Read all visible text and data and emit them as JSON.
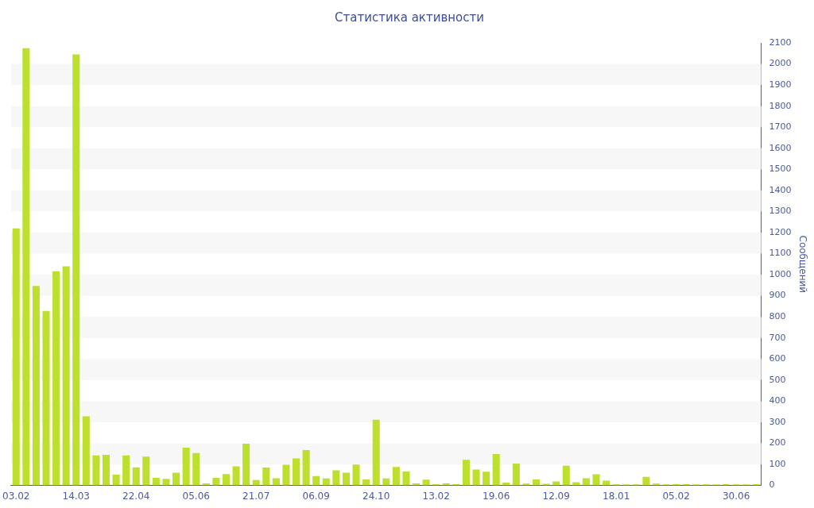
{
  "chart_data": {
    "type": "bar",
    "title": "Статистика активности",
    "y2label": "Сообщений",
    "categories": [
      "03.02",
      null,
      null,
      null,
      null,
      null,
      "14.03",
      null,
      null,
      null,
      null,
      null,
      "22.04",
      null,
      null,
      null,
      null,
      null,
      "05.06",
      null,
      null,
      null,
      null,
      null,
      "21.07",
      null,
      null,
      null,
      null,
      null,
      "06.09",
      null,
      null,
      null,
      null,
      null,
      "24.10",
      null,
      null,
      null,
      null,
      null,
      "13.02",
      null,
      null,
      null,
      null,
      null,
      "19.06",
      null,
      null,
      null,
      null,
      null,
      "12.09",
      null,
      null,
      null,
      null,
      null,
      "18.01",
      null,
      null,
      null,
      null,
      null,
      "05.02",
      null,
      null,
      null,
      null,
      null,
      "30.06",
      null,
      null
    ],
    "series": [
      {
        "color": "#bde02e",
        "axis": "y2",
        "values": [
          1220,
          2075,
          947,
          828,
          1016,
          1040,
          2045,
          328,
          143,
          145,
          51,
          143,
          86,
          137,
          36,
          31,
          61,
          179,
          154,
          10,
          36,
          54,
          91,
          198,
          26,
          85,
          34,
          98,
          128,
          168,
          45,
          33,
          72,
          61,
          99,
          29,
          312,
          33,
          88,
          66,
          10,
          28,
          6,
          10,
          6,
          122,
          76,
          65,
          149,
          14,
          104,
          9,
          29,
          8,
          19,
          94,
          15,
          34,
          53,
          23,
          5,
          5,
          5,
          41,
          9,
          5,
          6,
          6,
          5,
          5,
          5,
          6,
          5,
          5,
          6
        ]
      }
    ],
    "y2lim": [
      0,
      2100
    ],
    "y2ticks": [
      0,
      100,
      200,
      300,
      400,
      500,
      600,
      700,
      800,
      900,
      1000,
      1100,
      1200,
      1300,
      1400,
      1500,
      1600,
      1700,
      1800,
      1900,
      2000,
      2100
    ],
    "bands": [
      {
        "axis": "y2",
        "from": 100,
        "to": 200,
        "color": "#f7f7f7"
      },
      {
        "axis": "y2",
        "from": 300,
        "to": 400,
        "color": "#f7f7f7"
      },
      {
        "axis": "y2",
        "from": 500,
        "to": 600,
        "color": "#f7f7f7"
      },
      {
        "axis": "y2",
        "from": 700,
        "to": 800,
        "color": "#f7f7f7"
      },
      {
        "axis": "y2",
        "from": 900,
        "to": 1000,
        "color": "#f7f7f7"
      },
      {
        "axis": "y2",
        "from": 1100,
        "to": 1200,
        "color": "#f7f7f7"
      },
      {
        "axis": "y2",
        "from": 1300,
        "to": 1400,
        "color": "#f7f7f7"
      },
      {
        "axis": "y2",
        "from": 1500,
        "to": 1600,
        "color": "#f7f7f7"
      },
      {
        "axis": "y2",
        "from": 1700,
        "to": 1800,
        "color": "#f7f7f7"
      },
      {
        "axis": "y2",
        "from": 1900,
        "to": 2000,
        "color": "#f7f7f7"
      }
    ],
    "legend": false
  }
}
